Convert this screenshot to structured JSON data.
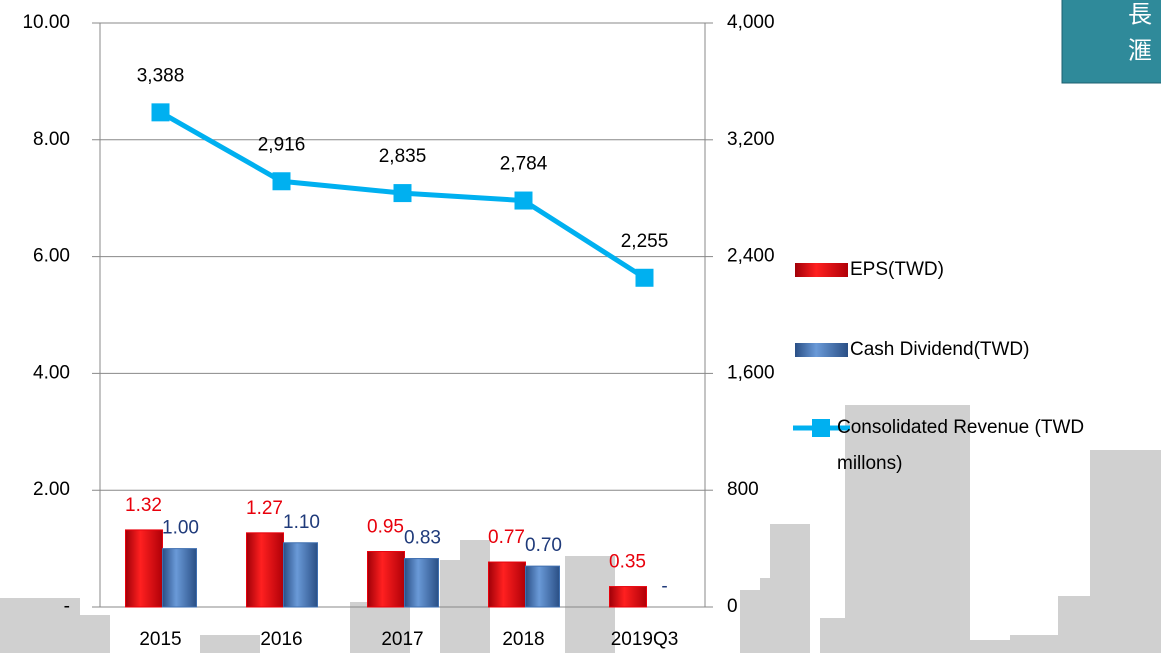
{
  "chart_data": {
    "type": "bar-line",
    "categories": [
      "2015",
      "2016",
      "2017",
      "2018",
      "2019Q3"
    ],
    "series": [
      {
        "name": "EPS(TWD)",
        "color": "#e8000b",
        "label_color": "#e8000b",
        "values": [
          1.32,
          1.27,
          0.95,
          0.77,
          0.35
        ]
      },
      {
        "name": "Cash Dividend(TWD)",
        "color": "#3f6fb0",
        "label_color": "#1f3a7a",
        "values": [
          1.0,
          1.1,
          0.83,
          0.7,
          0
        ],
        "value_labels": [
          "1.00",
          "1.10",
          "0.83",
          "0.70",
          "-"
        ]
      },
      {
        "name": "Consolidated Revenue (TWD millons)",
        "color": "#00b0f0",
        "axis": "y2",
        "values": [
          3388,
          2916,
          2835,
          2784,
          2255
        ],
        "value_labels": [
          "3,388",
          "2,916",
          "2,835",
          "2,784",
          "2,255"
        ]
      }
    ],
    "ylim": [
      0,
      10
    ],
    "yticks": [
      {
        "value": 0,
        "label": "-"
      },
      {
        "value": 2,
        "label": "2.00"
      },
      {
        "value": 4,
        "label": "4.00"
      },
      {
        "value": 6,
        "label": "6.00"
      },
      {
        "value": 8,
        "label": "8.00"
      },
      {
        "value": 10,
        "label": "10.00"
      }
    ],
    "y2lim": [
      0,
      4000
    ],
    "y2ticks": [
      0,
      800,
      {
        "value": 1600,
        "label": "1,600"
      },
      {
        "value": 2400,
        "label": "2,400"
      },
      {
        "value": 3200,
        "label": "3,200"
      },
      {
        "value": 4000,
        "label": "4,000"
      }
    ],
    "grid": true
  },
  "badge": {
    "lines": [
      "長",
      "滙"
    ]
  }
}
